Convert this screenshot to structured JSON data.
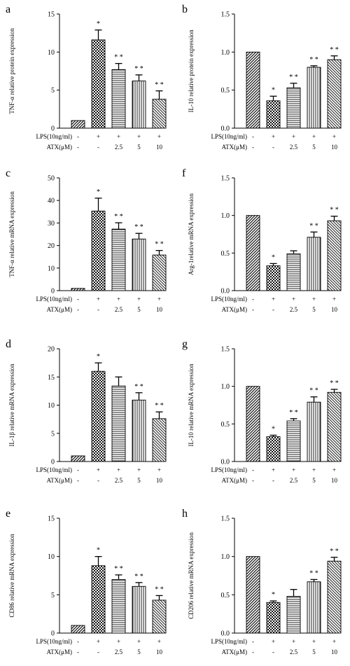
{
  "panel_labels": [
    "a",
    "b",
    "c",
    "f",
    "d",
    "g",
    "e",
    "h"
  ],
  "row_labels": {
    "lps": "LPS(10ng/ml)",
    "atx": "ATX(μM)"
  },
  "lps_values": [
    "-",
    "+",
    "+",
    "+",
    "+"
  ],
  "atx_values": [
    "-",
    "-",
    "2.5",
    "5",
    "10"
  ],
  "chart_data": [
    {
      "panel": "a",
      "type": "bar",
      "ylabel": "TNF-α relative protein expression",
      "ylim": [
        0,
        15
      ],
      "yticks": [
        0,
        5,
        10,
        15
      ],
      "values": [
        1.0,
        11.6,
        7.7,
        6.2,
        3.8
      ],
      "errors": [
        0,
        1.3,
        0.8,
        0.8,
        1.1
      ],
      "stars": [
        "",
        "*",
        "* *",
        "* *",
        "* *"
      ]
    },
    {
      "panel": "b",
      "type": "bar",
      "ylabel": "IL-10 relative protein expression",
      "ylim": [
        0,
        1.5
      ],
      "yticks": [
        0.0,
        0.5,
        1.0,
        1.5
      ],
      "values": [
        1.0,
        0.36,
        0.53,
        0.8,
        0.9
      ],
      "errors": [
        0,
        0.06,
        0.06,
        0.02,
        0.05
      ],
      "stars": [
        "",
        "*",
        "* *",
        "* *",
        "* *"
      ]
    },
    {
      "panel": "c",
      "type": "bar",
      "ylabel": "TNF-α relative mRNA expression",
      "ylim": [
        0,
        50
      ],
      "yticks": [
        0,
        10,
        20,
        30,
        40,
        50
      ],
      "values": [
        1.0,
        35.3,
        27.3,
        22.9,
        15.8
      ],
      "errors": [
        0,
        5.7,
        2.8,
        2.5,
        2.0
      ],
      "stars": [
        "",
        "*",
        "* *",
        "* *",
        "* *"
      ]
    },
    {
      "panel": "f",
      "type": "bar",
      "ylabel": "Arg-1relative mRNA expression",
      "ylim": [
        0,
        1.5
      ],
      "yticks": [
        0.0,
        0.5,
        1.0,
        1.5
      ],
      "values": [
        1.0,
        0.33,
        0.49,
        0.71,
        0.93
      ],
      "errors": [
        0,
        0.03,
        0.04,
        0.07,
        0.06
      ],
      "stars": [
        "",
        "*",
        "",
        "* *",
        "* *"
      ]
    },
    {
      "panel": "d",
      "type": "bar",
      "ylabel": "IL-1β relative mRNA expression",
      "ylim": [
        0,
        20
      ],
      "yticks": [
        0,
        5,
        10,
        15,
        20
      ],
      "values": [
        1.0,
        16.0,
        13.4,
        10.9,
        7.6
      ],
      "errors": [
        0,
        1.5,
        1.6,
        1.3,
        1.2
      ],
      "stars": [
        "",
        "*",
        "",
        "* *",
        "* *"
      ]
    },
    {
      "panel": "g",
      "type": "bar",
      "ylabel": "IL-10 relative mRNA expression",
      "ylim": [
        0,
        1.5
      ],
      "yticks": [
        0.0,
        0.5,
        1.0,
        1.5
      ],
      "values": [
        1.0,
        0.33,
        0.54,
        0.79,
        0.92
      ],
      "errors": [
        0,
        0.02,
        0.03,
        0.07,
        0.04
      ],
      "stars": [
        "",
        "*",
        "* *",
        "* *",
        "* *"
      ]
    },
    {
      "panel": "e",
      "type": "bar",
      "ylabel": "CD86 relative mRNA expression",
      "ylim": [
        0,
        15
      ],
      "yticks": [
        0,
        5,
        10,
        15
      ],
      "values": [
        1.0,
        8.8,
        7.0,
        6.1,
        4.3
      ],
      "errors": [
        0,
        1.2,
        0.6,
        0.5,
        0.6
      ],
      "stars": [
        "",
        "*",
        "* *",
        "* *",
        "* *"
      ]
    },
    {
      "panel": "h",
      "type": "bar",
      "ylabel": "CD206 relative mRNA expression",
      "ylim": [
        0,
        1.5
      ],
      "yticks": [
        0.0,
        0.5,
        1.0,
        1.5
      ],
      "values": [
        1.0,
        0.4,
        0.48,
        0.67,
        0.94
      ],
      "errors": [
        0,
        0.02,
        0.09,
        0.03,
        0.05
      ],
      "stars": [
        "",
        "*",
        "",
        "* *",
        "* *"
      ]
    }
  ]
}
